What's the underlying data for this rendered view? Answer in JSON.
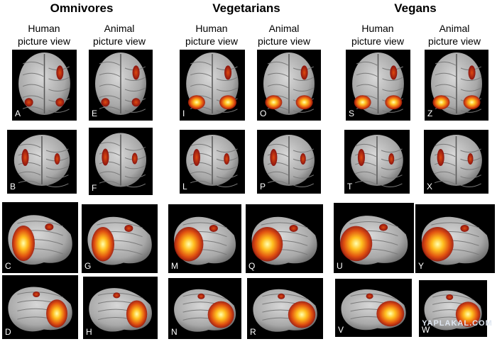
{
  "groups": [
    {
      "title": "Omnivores",
      "columns": [
        [
          "Human",
          "picture view"
        ],
        [
          "Animal",
          "picture view"
        ]
      ]
    },
    {
      "title": "Vegetarians",
      "columns": [
        [
          "Human",
          "picture view"
        ],
        [
          "Animal",
          "picture view"
        ]
      ]
    },
    {
      "title": "Vegans",
      "columns": [
        [
          "Human",
          "picture view"
        ],
        [
          "Animal",
          "picture view"
        ]
      ]
    }
  ],
  "panels": {
    "rows": [
      [
        "A",
        "E",
        "I",
        "O",
        "S",
        "Z"
      ],
      [
        "B",
        "F",
        "L",
        "P",
        "T",
        "X"
      ],
      [
        "C",
        "G",
        "M",
        "Q",
        "U",
        "Y"
      ],
      [
        "D",
        "H",
        "N",
        "R",
        "V",
        "W"
      ]
    ]
  },
  "watermark": "YAPLAKAL.COM"
}
